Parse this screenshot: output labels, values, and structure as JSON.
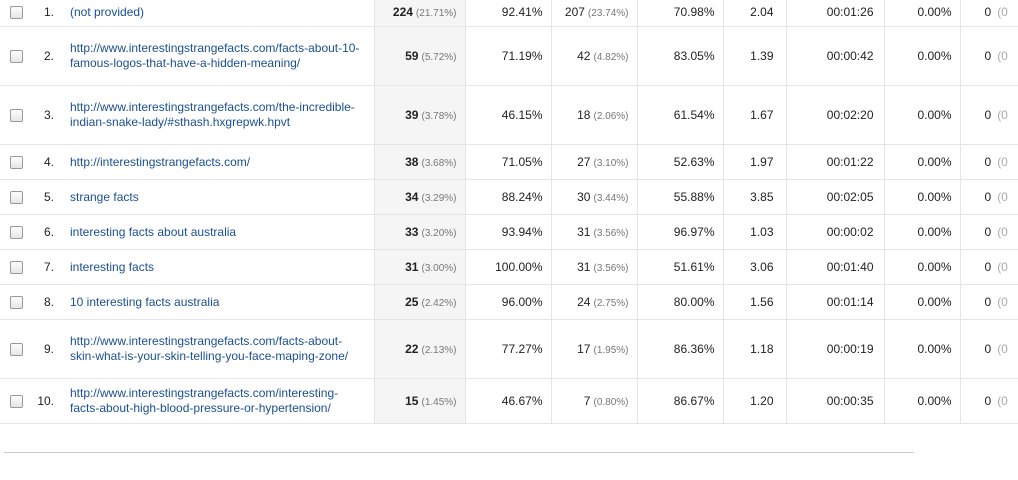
{
  "rows": [
    {
      "idx": "1.",
      "key": "(not provided)",
      "sessions": "224",
      "sessions_pct": "(21.71%)",
      "pct_new": "92.41%",
      "new_users": "207",
      "new_users_pct": "(23.74%)",
      "bounce": "70.98%",
      "pages": "2.04",
      "duration": "00:01:26",
      "conv": "0.00%",
      "goal": "0",
      "goal_sub": "(0"
    },
    {
      "idx": "2.",
      "key": "http://www.interestingstrangefacts.com/facts-about-10-famous-logos-that-have-a-hidden-meaning/",
      "sessions": "59",
      "sessions_pct": "(5.72%)",
      "pct_new": "71.19%",
      "new_users": "42",
      "new_users_pct": "(4.82%)",
      "bounce": "83.05%",
      "pages": "1.39",
      "duration": "00:00:42",
      "conv": "0.00%",
      "goal": "0",
      "goal_sub": "(0"
    },
    {
      "idx": "3.",
      "key": "http://www.interestingstrangefacts.com/the-incredible-indian-snake-lady/#sthash.hxgrepwk.hpvt",
      "sessions": "39",
      "sessions_pct": "(3.78%)",
      "pct_new": "46.15%",
      "new_users": "18",
      "new_users_pct": "(2.06%)",
      "bounce": "61.54%",
      "pages": "1.67",
      "duration": "00:02:20",
      "conv": "0.00%",
      "goal": "0",
      "goal_sub": "(0"
    },
    {
      "idx": "4.",
      "key": "http://interestingstrangefacts.com/",
      "sessions": "38",
      "sessions_pct": "(3.68%)",
      "pct_new": "71.05%",
      "new_users": "27",
      "new_users_pct": "(3.10%)",
      "bounce": "52.63%",
      "pages": "1.97",
      "duration": "00:01:22",
      "conv": "0.00%",
      "goal": "0",
      "goal_sub": "(0"
    },
    {
      "idx": "5.",
      "key": "strange facts",
      "sessions": "34",
      "sessions_pct": "(3.29%)",
      "pct_new": "88.24%",
      "new_users": "30",
      "new_users_pct": "(3.44%)",
      "bounce": "55.88%",
      "pages": "3.85",
      "duration": "00:02:05",
      "conv": "0.00%",
      "goal": "0",
      "goal_sub": "(0"
    },
    {
      "idx": "6.",
      "key": "interesting facts about australia",
      "sessions": "33",
      "sessions_pct": "(3.20%)",
      "pct_new": "93.94%",
      "new_users": "31",
      "new_users_pct": "(3.56%)",
      "bounce": "96.97%",
      "pages": "1.03",
      "duration": "00:00:02",
      "conv": "0.00%",
      "goal": "0",
      "goal_sub": "(0"
    },
    {
      "idx": "7.",
      "key": "interesting facts",
      "sessions": "31",
      "sessions_pct": "(3.00%)",
      "pct_new": "100.00%",
      "new_users": "31",
      "new_users_pct": "(3.56%)",
      "bounce": "51.61%",
      "pages": "3.06",
      "duration": "00:01:40",
      "conv": "0.00%",
      "goal": "0",
      "goal_sub": "(0"
    },
    {
      "idx": "8.",
      "key": "10 interesting facts australia",
      "sessions": "25",
      "sessions_pct": "(2.42%)",
      "pct_new": "96.00%",
      "new_users": "24",
      "new_users_pct": "(2.75%)",
      "bounce": "80.00%",
      "pages": "1.56",
      "duration": "00:01:14",
      "conv": "0.00%",
      "goal": "0",
      "goal_sub": "(0"
    },
    {
      "idx": "9.",
      "key": "http://www.interestingstrangefacts.com/facts-about-skin-what-is-your-skin-telling-you-face-maping-zone/",
      "sessions": "22",
      "sessions_pct": "(2.13%)",
      "pct_new": "77.27%",
      "new_users": "17",
      "new_users_pct": "(1.95%)",
      "bounce": "86.36%",
      "pages": "1.18",
      "duration": "00:00:19",
      "conv": "0.00%",
      "goal": "0",
      "goal_sub": "(0"
    },
    {
      "idx": "10.",
      "key": "http://www.interestingstrangefacts.com/interesting-facts-about-high-blood-pressure-or-hypertension/",
      "sessions": "15",
      "sessions_pct": "(1.45%)",
      "pct_new": "46.67%",
      "new_users": "7",
      "new_users_pct": "(0.80%)",
      "bounce": "86.67%",
      "pages": "1.20",
      "duration": "00:00:35",
      "conv": "0.00%",
      "goal": "0",
      "goal_sub": "(0"
    }
  ]
}
